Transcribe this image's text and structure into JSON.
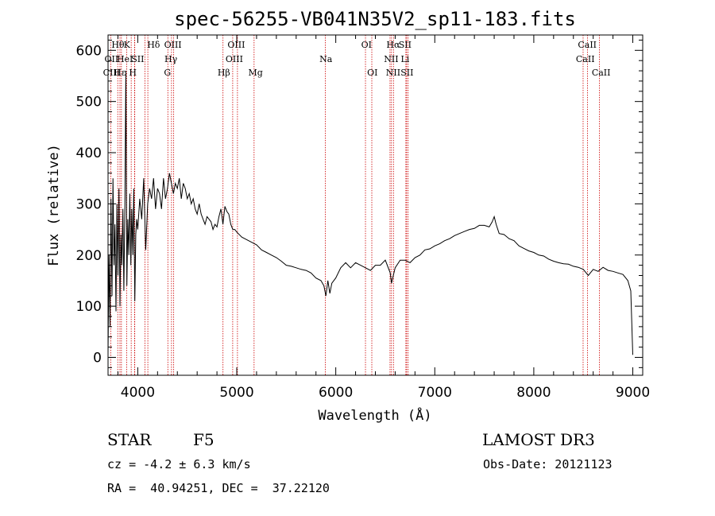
{
  "chart_data": {
    "type": "line",
    "title": "spec-56255-VB041N35V2_sp11-183.fits",
    "xlabel": "Wavelength (Å)",
    "ylabel": "Flux (relative)",
    "xlim": [
      3700,
      9100
    ],
    "ylim": [
      -35,
      630
    ],
    "xticks": [
      4000,
      5000,
      6000,
      7000,
      8000,
      9000
    ],
    "yticks": [
      0,
      100,
      200,
      300,
      400,
      500,
      600
    ],
    "series": [
      {
        "name": "flux",
        "x": [
          3700,
          3710,
          3720,
          3730,
          3740,
          3750,
          3760,
          3770,
          3780,
          3790,
          3800,
          3810,
          3820,
          3830,
          3840,
          3850,
          3860,
          3870,
          3880,
          3890,
          3900,
          3910,
          3920,
          3930,
          3940,
          3950,
          3960,
          3970,
          3980,
          3990,
          4000,
          4020,
          4040,
          4060,
          4080,
          4100,
          4120,
          4140,
          4160,
          4180,
          4200,
          4220,
          4240,
          4260,
          4280,
          4300,
          4320,
          4340,
          4360,
          4380,
          4400,
          4420,
          4440,
          4460,
          4480,
          4500,
          4520,
          4540,
          4560,
          4580,
          4600,
          4620,
          4640,
          4660,
          4680,
          4700,
          4720,
          4740,
          4760,
          4780,
          4800,
          4820,
          4840,
          4860,
          4880,
          4900,
          4920,
          4940,
          4960,
          4980,
          5000,
          5050,
          5100,
          5150,
          5200,
          5250,
          5300,
          5350,
          5400,
          5450,
          5500,
          5550,
          5600,
          5650,
          5700,
          5750,
          5800,
          5850,
          5880,
          5900,
          5920,
          5940,
          5960,
          6000,
          6050,
          6100,
          6150,
          6200,
          6250,
          6300,
          6350,
          6400,
          6450,
          6500,
          6550,
          6563,
          6600,
          6650,
          6700,
          6750,
          6800,
          6850,
          6900,
          6950,
          7000,
          7050,
          7100,
          7150,
          7200,
          7250,
          7300,
          7350,
          7400,
          7450,
          7500,
          7550,
          7580,
          7600,
          7620,
          7650,
          7700,
          7750,
          7800,
          7850,
          7900,
          7950,
          8000,
          8050,
          8100,
          8150,
          8200,
          8250,
          8300,
          8350,
          8400,
          8450,
          8500,
          8550,
          8600,
          8650,
          8700,
          8750,
          8800,
          8850,
          8900,
          8950,
          8980,
          9000
        ],
        "y": [
          10,
          200,
          60,
          310,
          120,
          350,
          180,
          260,
          90,
          300,
          160,
          330,
          100,
          240,
          180,
          290,
          130,
          300,
          560,
          140,
          270,
          200,
          320,
          180,
          290,
          200,
          330,
          110,
          240,
          270,
          250,
          310,
          270,
          350,
          210,
          300,
          330,
          310,
          350,
          290,
          330,
          320,
          290,
          350,
          310,
          330,
          360,
          340,
          320,
          340,
          330,
          350,
          310,
          340,
          330,
          310,
          320,
          300,
          310,
          290,
          280,
          300,
          280,
          270,
          260,
          275,
          270,
          265,
          250,
          260,
          255,
          275,
          290,
          260,
          295,
          285,
          280,
          260,
          250,
          250,
          245,
          235,
          230,
          225,
          220,
          210,
          205,
          200,
          195,
          188,
          180,
          178,
          175,
          172,
          170,
          165,
          155,
          150,
          140,
          120,
          150,
          125,
          145,
          155,
          175,
          185,
          175,
          185,
          180,
          175,
          170,
          180,
          180,
          190,
          165,
          145,
          175,
          190,
          190,
          185,
          195,
          200,
          210,
          212,
          218,
          222,
          228,
          232,
          238,
          242,
          246,
          250,
          252,
          258,
          258,
          255,
          265,
          275,
          260,
          242,
          240,
          232,
          228,
          218,
          213,
          208,
          205,
          200,
          198,
          192,
          188,
          185,
          183,
          182,
          178,
          176,
          172,
          160,
          172,
          168,
          176,
          170,
          168,
          165,
          162,
          150,
          130,
          5
        ]
      }
    ],
    "lines": [
      {
        "name": "OII",
        "x": 3727
      },
      {
        "name": "Hθ",
        "x": 3798
      },
      {
        "name": "CIII",
        "x": 3820
      },
      {
        "name": "Hη",
        "x": 3835
      },
      {
        "name": "HeI",
        "x": 3889
      },
      {
        "name": "Hε",
        "x": 3970
      },
      {
        "name": "K",
        "x": 3934
      },
      {
        "name": "H",
        "x": 3968
      },
      {
        "name": "SII",
        "x": 4072
      },
      {
        "name": "Hδ",
        "x": 4102
      },
      {
        "name": "G",
        "x": 4304
      },
      {
        "name": "Hγ",
        "x": 4341
      },
      {
        "name": "OIII",
        "x": 4363
      },
      {
        "name": "Hβ",
        "x": 4861
      },
      {
        "name": "OIII",
        "x": 4959
      },
      {
        "name": "OIII",
        "x": 5007
      },
      {
        "name": "Mg",
        "x": 5175
      },
      {
        "name": "Na",
        "x": 5894
      },
      {
        "name": "OI",
        "x": 6300
      },
      {
        "name": "OI",
        "x": 6364
      },
      {
        "name": "NII",
        "x": 6548
      },
      {
        "name": "Hα",
        "x": 6563
      },
      {
        "name": "NII",
        "x": 6583
      },
      {
        "name": "Li",
        "x": 6708
      },
      {
        "name": "SII",
        "x": 6716
      },
      {
        "name": "SII",
        "x": 6731
      },
      {
        "name": "CaII",
        "x": 8498
      },
      {
        "name": "CaII",
        "x": 8542
      },
      {
        "name": "CaII",
        "x": 8662
      }
    ],
    "line_labels": [
      {
        "text": "Hθ",
        "x": 3800,
        "row": 1
      },
      {
        "text": "K",
        "x": 3890,
        "row": 1
      },
      {
        "text": "Hδ",
        "x": 4160,
        "row": 1
      },
      {
        "text": "OIII",
        "x": 4355,
        "row": 1
      },
      {
        "text": "OIII",
        "x": 4995,
        "row": 1
      },
      {
        "text": "OI",
        "x": 6310,
        "row": 1
      },
      {
        "text": "Hα",
        "x": 6580,
        "row": 1
      },
      {
        "text": "SII",
        "x": 6700,
        "row": 1
      },
      {
        "text": "CaII",
        "x": 8540,
        "row": 1
      },
      {
        "text": "OII",
        "x": 3735,
        "row": 2
      },
      {
        "text": "HeI",
        "x": 3870,
        "row": 2
      },
      {
        "text": "SII",
        "x": 4000,
        "row": 2
      },
      {
        "text": "Hγ",
        "x": 4335,
        "row": 2
      },
      {
        "text": "OIII",
        "x": 4975,
        "row": 2
      },
      {
        "text": "Na",
        "x": 5900,
        "row": 2
      },
      {
        "text": "NII",
        "x": 6560,
        "row": 2
      },
      {
        "text": "Li",
        "x": 6700,
        "row": 2
      },
      {
        "text": "CaII",
        "x": 8520,
        "row": 2
      },
      {
        "text": "CIII",
        "x": 3735,
        "row": 3
      },
      {
        "text": "Hε",
        "x": 3820,
        "row": 3
      },
      {
        "text": "H",
        "x": 3950,
        "row": 3
      },
      {
        "text": "G",
        "x": 4300,
        "row": 3
      },
      {
        "text": "Hβ",
        "x": 4870,
        "row": 3
      },
      {
        "text": "Mg",
        "x": 5190,
        "row": 3
      },
      {
        "text": "OI",
        "x": 6370,
        "row": 3
      },
      {
        "text": "NII",
        "x": 6580,
        "row": 3
      },
      {
        "text": "SII",
        "x": 6720,
        "row": 3
      },
      {
        "text": "CaII",
        "x": 8680,
        "row": 3
      }
    ],
    "colors": {
      "line": "#000000",
      "marker": "#cc0000"
    }
  },
  "info": {
    "object_class": "STAR",
    "subclass": "F5",
    "survey": "LAMOST DR3",
    "redshift": "cz = -4.2 ± 6.3 km/s",
    "obs_date": "Obs-Date: 20121123",
    "coords": "RA =  40.94251, DEC =  37.22120"
  }
}
